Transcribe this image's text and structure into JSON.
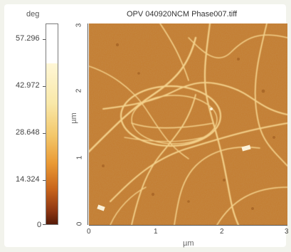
{
  "window": {
    "title": "OPV 040920NCM Phase007.tiff"
  },
  "colorbar": {
    "unit": "deg",
    "labels": [
      "57.296",
      "42.972",
      "28.648",
      "14.324",
      "0"
    ],
    "colors": {
      "top": "#ffffff",
      "mid": "#ea9a35",
      "bottom": "#551b08"
    }
  },
  "image": {
    "x_unit": "µm",
    "y_unit": "µm",
    "x_ticks": [
      "0",
      "1",
      "2",
      "3"
    ],
    "y_ticks": [
      "3",
      "2",
      "1",
      "0"
    ],
    "background_color": "#c47a2c",
    "fiber_color": "#f3d08a"
  }
}
